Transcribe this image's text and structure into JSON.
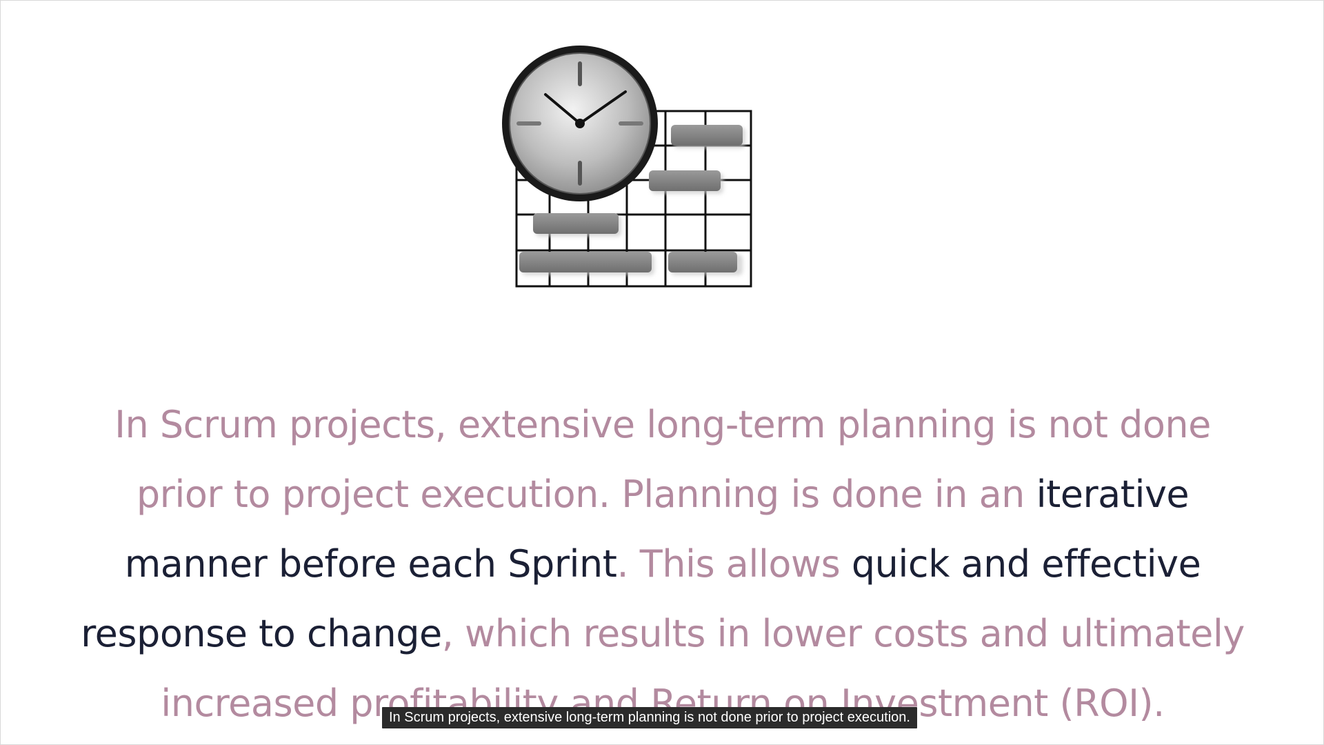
{
  "slide": {
    "illustration_icon": "clock-gantt-chart-icon",
    "paragraph": [
      {
        "text": "In Scrum projects, extensive long-term planning is not done prior to project execution. Planning is done in an ",
        "style": "muted"
      },
      {
        "text": "iterative manner before each Sprint",
        "style": "dark"
      },
      {
        "text": ". This allows ",
        "style": "muted"
      },
      {
        "text": "quick and effective response to change",
        "style": "dark"
      },
      {
        "text": ", which results in lower costs and ultimately increased profitability and Return on Investment (ROI).",
        "style": "muted"
      }
    ]
  },
  "caption": {
    "text": "In Scrum projects, extensive long-term planning is not done prior to project execution."
  },
  "colors": {
    "muted_text": "#b38a9f",
    "dark_text": "#1b2035",
    "caption_bg": "#2b2b2b"
  }
}
